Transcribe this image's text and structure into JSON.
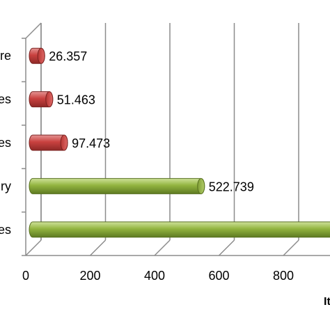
{
  "chart_data": {
    "type": "bar",
    "orientation": "horizontal",
    "style": "3d-cylinder",
    "categories": [
      "re",
      "es",
      "es",
      "ry",
      "es"
    ],
    "values": [
      26.357,
      51.463,
      97.473,
      522.739,
      950
    ],
    "data_labels": [
      "26.357",
      "51.463",
      "97.473",
      "522.739",
      ""
    ],
    "bar_colors": [
      "#c9413f",
      "#c9413f",
      "#c9413f",
      "#92b43f",
      "#92b43f"
    ],
    "xlim": [
      0,
      1000
    ],
    "x_ticks": [
      "0",
      "200",
      "400",
      "600",
      "800"
    ],
    "xlabel": "It",
    "ylabel": "",
    "title": "",
    "grid": true
  }
}
